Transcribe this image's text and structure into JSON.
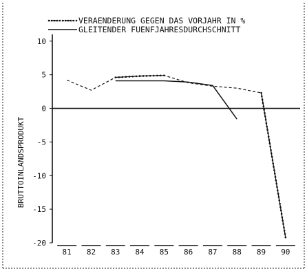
{
  "chart_data": {
    "type": "line",
    "ylabel": "BRUTTOINLANDSPRODUKT",
    "xlabel": "",
    "x_tick_labels": [
      "81",
      "82",
      "83",
      "84",
      "85",
      "86",
      "87",
      "88",
      "89",
      "90"
    ],
    "y_tick_labels": [
      "10",
      "5",
      "0",
      "-5",
      "-10",
      "-15",
      "-20"
    ],
    "y_tick_values": [
      10,
      5,
      0,
      -5,
      -10,
      -15,
      -20
    ],
    "xlim": [
      80.4,
      90.6
    ],
    "ylim": [
      -20,
      11
    ],
    "grid": false,
    "legend_position": "top",
    "series": [
      {
        "name": "VERAENDERUNG GEGEN DAS VORJAHR IN %",
        "style": "dashed-dotted",
        "x": [
          81,
          82,
          83,
          84,
          85,
          86,
          87,
          88,
          89,
          90
        ],
        "y": [
          4.2,
          2.7,
          4.6,
          4.8,
          4.9,
          3.8,
          3.3,
          3.0,
          2.3,
          -19.2
        ]
      },
      {
        "name": "GLEITENDER FUENFJAHRESDURCHSCHNITT",
        "style": "solid",
        "x": [
          83,
          84,
          85,
          86,
          87,
          88
        ],
        "y": [
          4.1,
          4.1,
          4.1,
          3.9,
          3.4,
          -1.6
        ]
      }
    ]
  },
  "colors": {
    "line": "#111111",
    "axis": "#111111",
    "border": "#222222"
  }
}
